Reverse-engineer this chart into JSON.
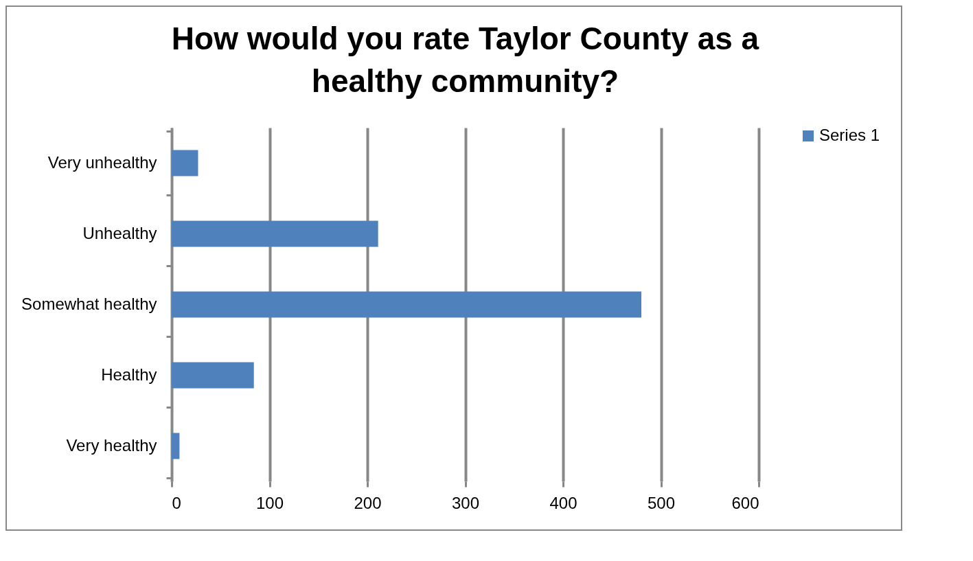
{
  "chart_data": {
    "type": "bar",
    "orientation": "horizontal",
    "title": "How would you rate Taylor County as a healthy community?",
    "categories": [
      "Very unhealthy",
      "Unhealthy",
      "Somewhat healthy",
      "Healthy",
      "Very healthy"
    ],
    "series": [
      {
        "name": "Series 1",
        "color": "#4f81bd",
        "values": [
          27,
          211,
          480,
          84,
          8
        ]
      }
    ],
    "xlim": [
      0,
      600
    ],
    "xticks": [
      0,
      100,
      200,
      300,
      400,
      500,
      600
    ],
    "grid": "x",
    "legend": "right"
  }
}
